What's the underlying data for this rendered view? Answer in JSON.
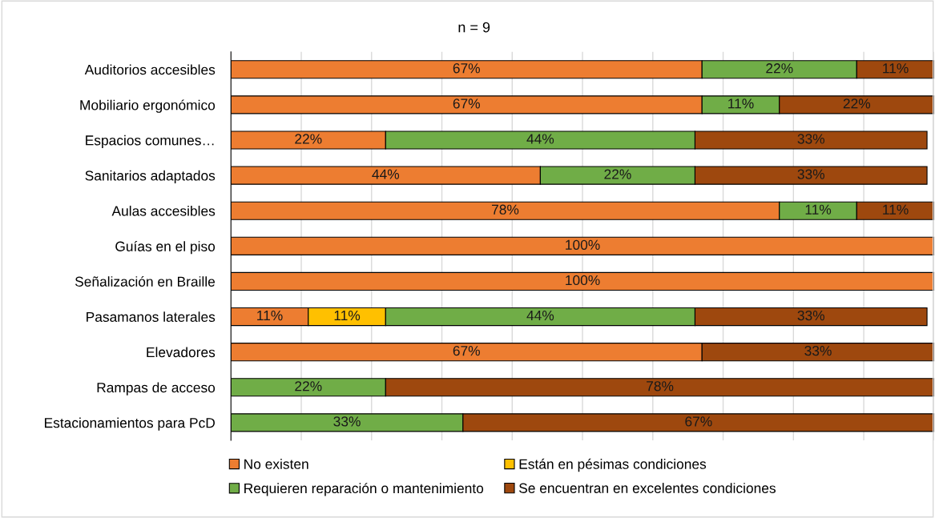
{
  "chart_data": {
    "type": "bar",
    "orientation": "horizontal",
    "stacked": true,
    "title": "n = 9",
    "categories": [
      "Auditorios accesibles",
      "Mobiliario ergonómico",
      "Espacios comunes…",
      "Sanitarios adaptados",
      "Aulas accesibles",
      "Guías en el piso",
      "Señalización en Braille",
      "Pasamanos laterales",
      "Elevadores",
      "Rampas de acceso",
      "Estacionamientos para PcD"
    ],
    "series": [
      {
        "name": "No existen",
        "color": "#ed7d31",
        "values": [
          67,
          67,
          22,
          44,
          78,
          100,
          100,
          11,
          67,
          null,
          null
        ],
        "value_labels": [
          "67%",
          "67%",
          "22%",
          "44%",
          "78%",
          "100%",
          "100%",
          "11%",
          "67%",
          null,
          null
        ]
      },
      {
        "name": "Están en pésimas condiciones",
        "color": "#ffc000",
        "values": [
          null,
          null,
          null,
          null,
          null,
          null,
          null,
          11,
          null,
          null,
          null
        ],
        "value_labels": [
          null,
          null,
          null,
          null,
          null,
          null,
          null,
          "11%",
          null,
          null,
          null
        ]
      },
      {
        "name": "Requieren reparación o mantenimiento",
        "color": "#70ad47",
        "values": [
          22,
          11,
          44,
          22,
          11,
          null,
          null,
          44,
          null,
          22,
          33
        ],
        "value_labels": [
          "22%",
          "11%",
          "44%",
          "22%",
          "11%",
          null,
          null,
          "44%",
          null,
          "22%",
          "33%"
        ]
      },
      {
        "name": "Se encuentran en excelentes condiciones",
        "color": "#9e480e",
        "values": [
          11,
          22,
          33,
          33,
          11,
          null,
          null,
          33,
          33,
          78,
          67
        ],
        "value_labels": [
          "11%",
          "22%",
          "33%",
          "33%",
          "11%",
          null,
          null,
          "33%",
          "33%",
          "78%",
          "67%"
        ]
      }
    ],
    "xlim": [
      0,
      100
    ],
    "xticks": [
      {
        "value": 0,
        "label": null
      },
      {
        "value": 10,
        "label": null
      },
      {
        "value": 20,
        "label": null
      },
      {
        "value": 30,
        "label": null
      },
      {
        "value": 40,
        "label": null
      },
      {
        "value": 50,
        "label": null
      },
      {
        "value": 60,
        "label": null
      },
      {
        "value": 70,
        "label": null
      },
      {
        "value": 80,
        "label": null
      },
      {
        "value": 90,
        "label": null
      },
      {
        "value": 100,
        "label": null
      }
    ],
    "tick_labels": "y",
    "grid": "x",
    "legend": "bottom"
  }
}
